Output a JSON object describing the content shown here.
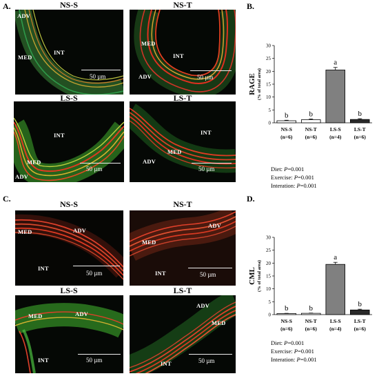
{
  "panels": {
    "A": {
      "letter": "A.",
      "images": [
        {
          "title": "NS-S",
          "labels": {
            "adv": "ADV",
            "med": "MED",
            "int": "INT"
          },
          "scale": "50 µm"
        },
        {
          "title": "NS-T",
          "labels": {
            "med": "MED",
            "int": "INT",
            "adv": "ADV"
          },
          "scale": "50 µm"
        },
        {
          "title": "LS-S",
          "labels": {
            "int": "INT",
            "med": "MED",
            "adv": "ADV"
          },
          "scale": "50 µm"
        },
        {
          "title": "LS-T",
          "labels": {
            "int": "INT",
            "med": "MED",
            "adv": "ADV"
          },
          "scale": "50 µm"
        }
      ]
    },
    "B": {
      "letter": "B.",
      "stats": {
        "diet_label": "Diet: ",
        "diet_p": "P",
        "diet_val": "=0.001",
        "exercise_label": "Exercise: ",
        "exercise_p": "P",
        "exercise_val": "=0.001",
        "interaction_label": "Interation: ",
        "interaction_p": "P",
        "interaction_val": "=0.001"
      }
    },
    "C": {
      "letter": "C.",
      "images": [
        {
          "title": "NS-S",
          "labels": {
            "adv": "ADV",
            "med": "MED",
            "int": "INT"
          },
          "scale": "50 µm"
        },
        {
          "title": "NS-T",
          "labels": {
            "adv": "ADV",
            "med": "MED",
            "int": "INT"
          },
          "scale": "50 µm"
        },
        {
          "title": "LS-S",
          "labels": {
            "med": "MED",
            "adv": "ADV",
            "int": "INT"
          },
          "scale": "50 µm"
        },
        {
          "title": "LS-T",
          "labels": {
            "adv": "ADV",
            "med": "MED",
            "int": "INT"
          },
          "scale": "50 µm"
        }
      ]
    },
    "D": {
      "letter": "D.",
      "stats": {
        "diet_label": "Diet: ",
        "diet_p": "P",
        "diet_val": "=0.001",
        "exercise_label": "Exercise: ",
        "exercise_p": "P",
        "exercise_val": "=0.001",
        "interaction_label": "Interation: ",
        "interaction_p": "P",
        "interaction_val": "=0.001"
      }
    }
  },
  "chart_data": [
    {
      "type": "bar",
      "panel": "B",
      "ylabel": "RAGE",
      "ylabel_sub": "(% of total area)",
      "categories": [
        "NS-S",
        "NS-T",
        "LS-S",
        "LS-T"
      ],
      "category_n": [
        "(n=6)",
        "(n=6)",
        "(n=4)",
        "(n=6)"
      ],
      "values": [
        0.8,
        1.2,
        20.5,
        1.3
      ],
      "errors": [
        0.2,
        0.3,
        1.0,
        0.3
      ],
      "significance": [
        "b",
        "b",
        "a",
        "b"
      ],
      "bar_colors": [
        "#ffffff",
        "#ffffff",
        "#808080",
        "#2a2a2a"
      ],
      "ylim": [
        0,
        30
      ],
      "yticks": [
        0,
        5,
        10,
        15,
        20,
        25,
        30
      ]
    },
    {
      "type": "bar",
      "panel": "D",
      "ylabel": "CML",
      "ylabel_sub": "(% of total area)",
      "categories": [
        "NS-S",
        "NS-T",
        "LS-S",
        "LS-T"
      ],
      "category_n": [
        "(n=6)",
        "(n=6)",
        "(n=4)",
        "(n=6)"
      ],
      "values": [
        0.4,
        0.5,
        19.5,
        1.8
      ],
      "errors": [
        0.1,
        0.1,
        0.8,
        0.3
      ],
      "significance": [
        "b",
        "b",
        "a",
        "b"
      ],
      "bar_colors": [
        "#ffffff",
        "#ffffff",
        "#808080",
        "#2a2a2a"
      ],
      "ylim": [
        0,
        30
      ],
      "yticks": [
        0,
        5,
        10,
        15,
        20,
        25,
        30
      ]
    }
  ]
}
